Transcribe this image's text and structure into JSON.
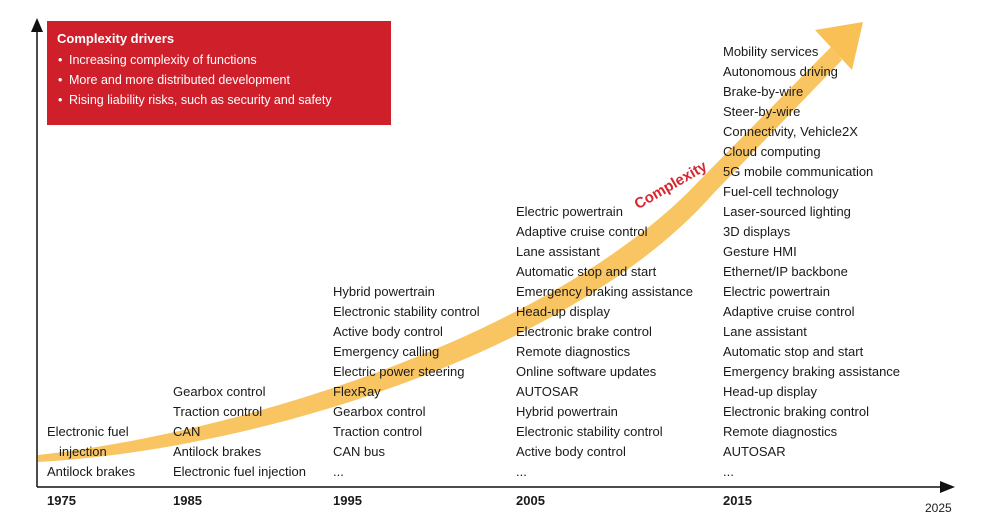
{
  "drivers": {
    "title": "Complexity drivers",
    "items": [
      "Increasing complexity of functions",
      "More and more distributed development",
      "Rising liability risks, such as security and safety"
    ],
    "color": "#cf1f2b"
  },
  "arrow_label": "Complexity",
  "colors": {
    "arrow": "#f9c055",
    "label": "#d7262e",
    "axis": "#111111"
  },
  "years": [
    "1975",
    "1985",
    "1995",
    "2005",
    "2015"
  ],
  "axis_end_label": "2025",
  "columns": [
    {
      "year": "1975",
      "items": [
        "Electronic fuel",
        "injection",
        "Antilock brakes"
      ]
    },
    {
      "year": "1985",
      "items": [
        "Gearbox control",
        "Traction control",
        "CAN",
        "Antilock brakes",
        "Electronic fuel injection"
      ]
    },
    {
      "year": "1995",
      "items": [
        "Hybrid powertrain",
        "Electronic stability control",
        "Active body control",
        "Emergency calling",
        "Electric power steering",
        "FlexRay",
        "Gearbox control",
        "Traction control",
        "CAN bus",
        "..."
      ]
    },
    {
      "year": "2005",
      "items": [
        "Electric powertrain",
        "Adaptive cruise control",
        "Lane assistant",
        "Automatic stop and start",
        "Emergency braking assistance",
        "Head-up display",
        "Electronic brake control",
        "Remote diagnostics",
        "Online software updates",
        "AUTOSAR",
        "Hybrid powertrain",
        "Electronic stability control",
        "Active body control",
        "..."
      ]
    },
    {
      "year": "2015",
      "items": [
        "Mobility services",
        "Autonomous driving",
        "Brake-by-wire",
        "Steer-by-wire",
        "Connectivity, Vehicle2X",
        "Cloud computing",
        "5G mobile communication",
        "Fuel-cell technology",
        "Laser-sourced lighting",
        "3D displays",
        "Gesture HMI",
        "Ethernet/IP backbone",
        "Electric powertrain",
        "Adaptive cruise control",
        "Lane assistant",
        "Automatic stop and start",
        "Emergency braking assistance",
        "Head-up display",
        "Electronic braking control",
        "Remote diagnostics",
        "AUTOSAR",
        "..."
      ]
    }
  ]
}
